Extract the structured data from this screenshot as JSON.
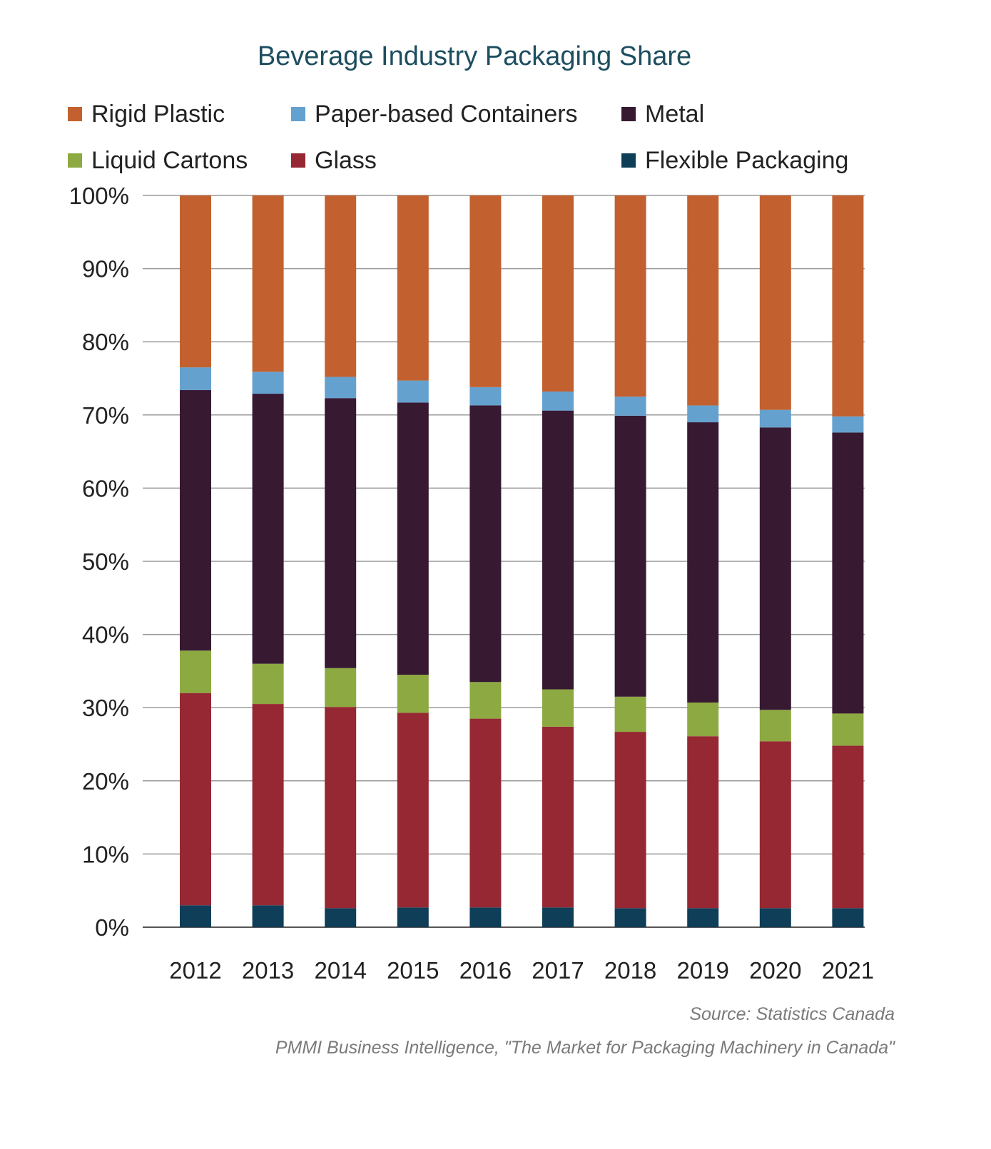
{
  "chart_data": {
    "type": "bar",
    "stacked": true,
    "title": "Beverage Industry Packaging Share",
    "categories": [
      "2012",
      "2013",
      "2014",
      "2015",
      "2016",
      "2017",
      "2018",
      "2019",
      "2020",
      "2021"
    ],
    "ylim": [
      0,
      100
    ],
    "y_ticks": [
      "0%",
      "10%",
      "20%",
      "30%",
      "40%",
      "50%",
      "60%",
      "70%",
      "80%",
      "90%",
      "100%"
    ],
    "grid": true,
    "legend_position": "top",
    "series": [
      {
        "name": "Flexible Packaging",
        "color": "#0e3e58",
        "values": [
          3.0,
          3.0,
          2.6,
          2.7,
          2.7,
          2.7,
          2.6,
          2.6,
          2.6,
          2.6
        ]
      },
      {
        "name": "Glass",
        "color": "#962833",
        "values": [
          29.0,
          27.5,
          27.5,
          26.6,
          25.8,
          24.7,
          24.1,
          23.5,
          22.8,
          22.2
        ]
      },
      {
        "name": "Liquid Cartons",
        "color": "#8da941",
        "values": [
          5.8,
          5.5,
          5.3,
          5.2,
          5.0,
          5.1,
          4.8,
          4.6,
          4.3,
          4.4
        ]
      },
      {
        "name": "Metal",
        "color": "#371a32",
        "values": [
          35.6,
          36.9,
          36.9,
          37.2,
          37.8,
          38.1,
          38.4,
          38.3,
          38.6,
          38.4
        ]
      },
      {
        "name": "Paper-based Containers",
        "color": "#65a1cf",
        "values": [
          3.1,
          3.0,
          2.9,
          3.0,
          2.5,
          2.6,
          2.6,
          2.3,
          2.4,
          2.2
        ]
      },
      {
        "name": "Rigid Plastic",
        "color": "#c2612f",
        "values": [
          23.5,
          24.1,
          24.8,
          25.3,
          26.2,
          26.8,
          27.5,
          28.7,
          29.3,
          30.2
        ]
      }
    ]
  },
  "legend_order": [
    "Rigid Plastic",
    "Paper-based Containers",
    "Metal",
    "Liquid Cartons",
    "Glass",
    "Flexible Packaging"
  ],
  "source": {
    "line1": "Source: Statistics Canada",
    "line2": "PMMI Business Intelligence, \"The Market for Packaging Machinery in Canada\""
  }
}
